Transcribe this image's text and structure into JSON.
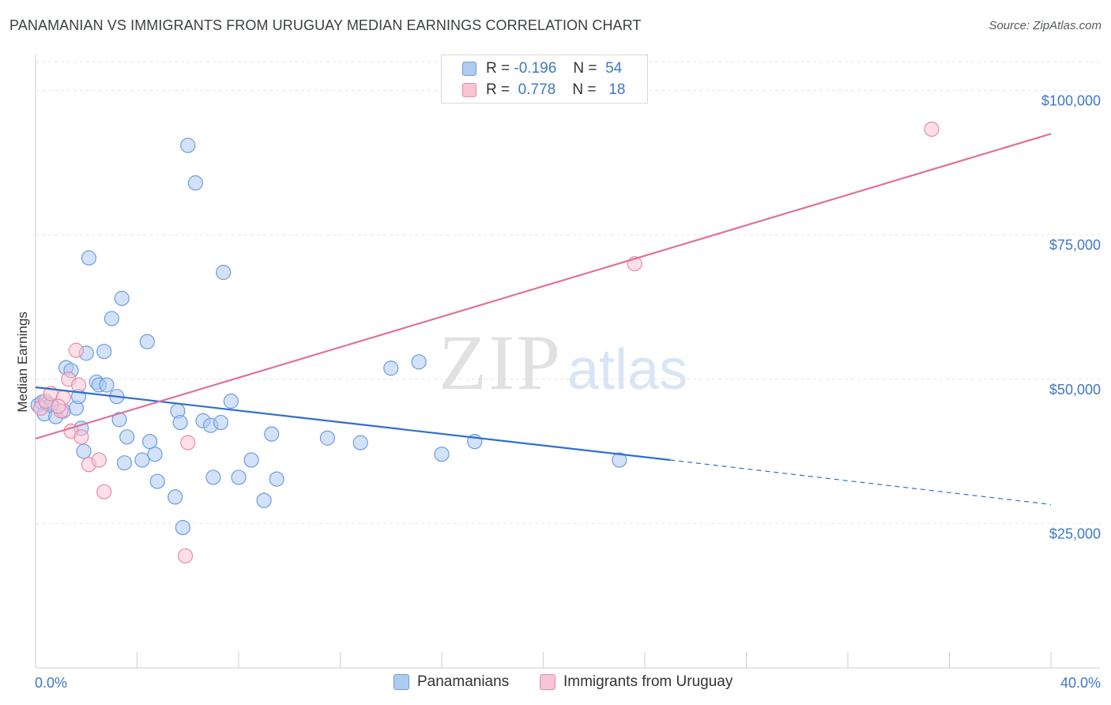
{
  "title": "PANAMANIAN VS IMMIGRANTS FROM URUGUAY MEDIAN EARNINGS CORRELATION CHART",
  "source": "Source: ZipAtlas.com",
  "watermark": {
    "zip": "ZIP",
    "atlas": "atlas"
  },
  "legend": {
    "rows": [
      {
        "r_label": "R =",
        "r_value": "-0.196",
        "n_label": "N =",
        "n_value": "54",
        "color": "#aecbf2",
        "border": "#6a9de0"
      },
      {
        "r_label": "R =",
        "r_value": "0.778",
        "n_label": "N =",
        "n_value": "18",
        "color": "#f9c4d4",
        "border": "#e88aa8"
      }
    ]
  },
  "bottom_legend": [
    {
      "label": "Panamanians",
      "color": "#aecbf2",
      "border": "#6a9de0"
    },
    {
      "label": "Immigrants from Uruguay",
      "color": "#f9c4d4",
      "border": "#e88aa8"
    }
  ],
  "chart_data": {
    "type": "scatter",
    "title": "PANAMANIAN VS IMMIGRANTS FROM URUGUAY MEDIAN EARNINGS CORRELATION CHART",
    "xlabel": "",
    "ylabel": "Median Earnings",
    "xlim": [
      0,
      40
    ],
    "ylim": [
      0,
      105000
    ],
    "x_tick_labels": [
      "0.0%",
      "40.0%"
    ],
    "y_ticks": [
      25000,
      50000,
      75000,
      100000
    ],
    "y_tick_labels": [
      "$25,000",
      "$50,000",
      "$75,000",
      "$100,000"
    ],
    "grid": true,
    "legend_position": "top-center",
    "series": [
      {
        "name": "Panamanians",
        "color": "#6a9de0",
        "fill": "#aecbf2",
        "trend": {
          "x": [
            0,
            25
          ],
          "y": [
            48600,
            36000
          ],
          "dashed_to": [
            40,
            28300
          ],
          "color": "#2f6fcc"
        },
        "points": [
          [
            0.1,
            45500
          ],
          [
            0.25,
            46000
          ],
          [
            0.35,
            44000
          ],
          [
            0.45,
            45800
          ],
          [
            0.6,
            45500
          ],
          [
            0.8,
            43500
          ],
          [
            1.1,
            44500
          ],
          [
            1.2,
            52000
          ],
          [
            1.4,
            51500
          ],
          [
            1.6,
            45000
          ],
          [
            1.7,
            47000
          ],
          [
            1.8,
            41500
          ],
          [
            1.9,
            37500
          ],
          [
            2.0,
            54500
          ],
          [
            2.1,
            71000
          ],
          [
            2.4,
            49500
          ],
          [
            2.5,
            49000
          ],
          [
            2.7,
            54800
          ],
          [
            2.8,
            49000
          ],
          [
            3.0,
            60500
          ],
          [
            3.2,
            47000
          ],
          [
            3.3,
            43000
          ],
          [
            3.4,
            64000
          ],
          [
            3.5,
            35500
          ],
          [
            3.6,
            40000
          ],
          [
            4.2,
            36000
          ],
          [
            4.4,
            56500
          ],
          [
            4.5,
            39200
          ],
          [
            4.7,
            37000
          ],
          [
            4.8,
            32300
          ],
          [
            5.5,
            29600
          ],
          [
            5.6,
            44500
          ],
          [
            5.7,
            42500
          ],
          [
            5.8,
            24300
          ],
          [
            6.0,
            90500
          ],
          [
            6.3,
            84000
          ],
          [
            6.6,
            42800
          ],
          [
            6.9,
            42000
          ],
          [
            7.0,
            33000
          ],
          [
            7.3,
            42500
          ],
          [
            7.4,
            68500
          ],
          [
            7.7,
            46200
          ],
          [
            8.0,
            33000
          ],
          [
            8.5,
            36000
          ],
          [
            9.0,
            29000
          ],
          [
            9.3,
            40500
          ],
          [
            9.5,
            32700
          ],
          [
            11.5,
            39800
          ],
          [
            12.8,
            39000
          ],
          [
            14.0,
            51900
          ],
          [
            15.1,
            53000
          ],
          [
            16.0,
            37000
          ],
          [
            17.3,
            39200
          ],
          [
            23.0,
            36000
          ]
        ]
      },
      {
        "name": "Immigrants from Uruguay",
        "color": "#e88aa8",
        "fill": "#f9c4d4",
        "trend": {
          "x": [
            0,
            40
          ],
          "y": [
            39700,
            92500
          ],
          "color": "#e0709a"
        },
        "points": [
          [
            0.2,
            45000
          ],
          [
            0.4,
            46200
          ],
          [
            0.6,
            47500
          ],
          [
            1.0,
            44500
          ],
          [
            1.3,
            50000
          ],
          [
            1.4,
            41000
          ],
          [
            1.6,
            55000
          ],
          [
            1.7,
            49000
          ],
          [
            1.8,
            40000
          ],
          [
            2.1,
            35200
          ],
          [
            2.5,
            36000
          ],
          [
            2.7,
            30500
          ],
          [
            6.0,
            39000
          ],
          [
            5.9,
            19400
          ],
          [
            23.6,
            70000
          ],
          [
            35.3,
            93300
          ],
          [
            1.1,
            46800
          ],
          [
            0.9,
            45300
          ]
        ]
      }
    ]
  }
}
